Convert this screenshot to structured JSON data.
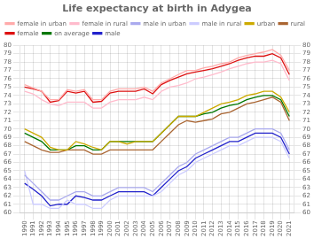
{
  "chart_data": {
    "type": "line",
    "title": "Life expectancy at birth in Adygea",
    "x": [
      1990,
      1991,
      1992,
      1993,
      1994,
      1995,
      1996,
      1997,
      1998,
      1999,
      2000,
      2001,
      2002,
      2003,
      2004,
      2005,
      2006,
      2007,
      2008,
      2009,
      2010,
      2011,
      2012,
      2013,
      2014,
      2015,
      2016,
      2017,
      2018,
      2019,
      2020,
      2021
    ],
    "series": [
      {
        "name": "female in urban",
        "color": "#ffaaaa",
        "values": [
          75.3,
          74.9,
          74.5,
          73.5,
          73.5,
          74.7,
          74.5,
          74.7,
          73.5,
          73.5,
          74.5,
          74.8,
          74.8,
          74.8,
          75.0,
          74.5,
          75.5,
          76.0,
          76.5,
          77.0,
          77.0,
          77.3,
          77.5,
          77.8,
          78.0,
          78.5,
          78.8,
          79.0,
          79.2,
          79.5,
          78.8,
          77.0
        ]
      },
      {
        "name": "female in rural",
        "color": "#ffbbcc",
        "values": [
          74.5,
          74.2,
          73.5,
          73.0,
          72.8,
          73.2,
          73.2,
          73.2,
          72.5,
          72.5,
          73.2,
          73.5,
          73.5,
          73.5,
          73.8,
          73.5,
          74.5,
          75.0,
          75.2,
          75.5,
          76.0,
          76.2,
          76.5,
          76.8,
          77.2,
          77.5,
          77.8,
          78.0,
          78.0,
          78.2,
          77.8,
          75.8
        ]
      },
      {
        "name": "male in urban",
        "color": "#aaaaee",
        "values": [
          64.5,
          63.5,
          62.5,
          61.5,
          61.5,
          62.0,
          62.5,
          62.5,
          62.0,
          62.0,
          62.5,
          63.0,
          63.0,
          63.0,
          63.0,
          62.5,
          63.5,
          64.5,
          65.5,
          66.0,
          67.0,
          67.5,
          68.0,
          68.5,
          69.0,
          69.0,
          69.5,
          70.0,
          70.0,
          70.0,
          69.5,
          67.5
        ]
      },
      {
        "name": "male in rural",
        "color": "#ccccff",
        "values": [
          65.0,
          61.0,
          61.0,
          60.5,
          60.5,
          61.5,
          61.0,
          61.0,
          60.5,
          60.5,
          61.5,
          62.0,
          62.0,
          62.0,
          62.0,
          62.0,
          62.5,
          63.5,
          64.5,
          65.0,
          66.0,
          66.5,
          67.0,
          67.5,
          68.0,
          68.0,
          68.5,
          69.0,
          69.0,
          69.0,
          68.5,
          66.5
        ]
      },
      {
        "name": "urban",
        "color": "#ccaa00",
        "values": [
          70.0,
          69.5,
          69.0,
          67.8,
          67.5,
          67.5,
          68.5,
          68.2,
          67.8,
          67.5,
          68.5,
          68.5,
          68.2,
          68.5,
          68.5,
          68.5,
          69.5,
          70.5,
          71.5,
          71.5,
          71.5,
          72.0,
          72.5,
          73.0,
          73.2,
          73.5,
          74.0,
          74.2,
          74.5,
          74.5,
          73.8,
          72.0
        ]
      },
      {
        "name": "rural",
        "color": "#aa6633",
        "values": [
          68.5,
          68.0,
          67.5,
          67.2,
          67.2,
          67.5,
          67.5,
          67.5,
          67.0,
          67.0,
          67.5,
          67.5,
          67.5,
          67.5,
          67.5,
          67.5,
          68.5,
          69.5,
          70.5,
          71.0,
          70.8,
          71.0,
          71.2,
          71.8,
          72.0,
          72.5,
          73.0,
          73.2,
          73.5,
          73.8,
          73.2,
          71.0
        ]
      },
      {
        "name": "female",
        "color": "#dd1111",
        "values": [
          75.0,
          74.8,
          74.5,
          73.2,
          73.4,
          74.5,
          74.3,
          74.5,
          73.2,
          73.3,
          74.3,
          74.5,
          74.5,
          74.5,
          74.8,
          74.2,
          75.3,
          75.8,
          76.2,
          76.6,
          76.8,
          77.0,
          77.2,
          77.5,
          77.8,
          78.2,
          78.5,
          78.7,
          78.7,
          79.0,
          78.5,
          76.5
        ]
      },
      {
        "name": "on average",
        "color": "#007700",
        "values": [
          69.5,
          69.0,
          68.5,
          67.5,
          67.5,
          67.5,
          68.0,
          68.0,
          67.5,
          67.5,
          68.5,
          68.5,
          68.5,
          68.5,
          68.5,
          68.5,
          69.5,
          70.5,
          71.5,
          71.5,
          71.5,
          71.8,
          72.0,
          72.5,
          72.8,
          73.0,
          73.5,
          73.8,
          74.0,
          74.0,
          73.5,
          71.5
        ]
      },
      {
        "name": "male",
        "color": "#2222cc",
        "values": [
          63.5,
          62.8,
          62.0,
          60.8,
          61.0,
          61.0,
          62.0,
          61.8,
          61.5,
          61.5,
          62.0,
          62.5,
          62.5,
          62.5,
          62.5,
          62.0,
          63.0,
          64.0,
          65.0,
          65.5,
          66.5,
          67.0,
          67.5,
          68.0,
          68.5,
          68.5,
          69.0,
          69.5,
          69.5,
          69.5,
          69.0,
          67.0
        ]
      }
    ],
    "xlim": [
      1989.5,
      2021.5
    ],
    "xticks": [
      1990,
      1991,
      1992,
      1993,
      1994,
      1995,
      1996,
      1997,
      1998,
      1999,
      2000,
      2001,
      2002,
      2003,
      2004,
      2005,
      2006,
      2007,
      2008,
      2009,
      2010,
      2011,
      2012,
      2013,
      2014,
      2015,
      2016,
      2017,
      2018,
      2019,
      2020,
      2021
    ],
    "ylim": [
      60,
      80
    ],
    "yticks": [
      60,
      61,
      62,
      63,
      64,
      65,
      66,
      67,
      68,
      69,
      70,
      71,
      72,
      73,
      74,
      75,
      76,
      77,
      78,
      79,
      80
    ],
    "y2lim": [
      60,
      80
    ],
    "y2ticks": [
      60,
      61,
      62,
      63,
      64,
      65,
      66,
      67,
      68,
      69,
      70,
      71,
      72,
      73,
      74,
      75,
      76,
      77,
      78,
      79,
      80
    ],
    "grid": true,
    "legend": "upper left"
  }
}
